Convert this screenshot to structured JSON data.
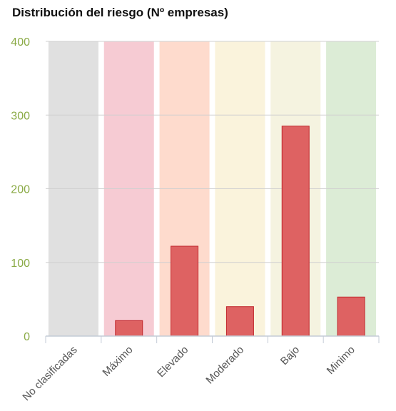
{
  "chart_data": {
    "type": "bar",
    "title": "Distribución del riesgo (Nº empresas)",
    "xlabel": "",
    "ylabel": "",
    "categories": [
      "No clasificadas",
      "Máximo",
      "Elevado",
      "Moderado",
      "Bajo",
      "Minimo"
    ],
    "values": [
      0,
      21,
      122,
      40,
      285,
      53
    ],
    "y_ticks": [
      0,
      100,
      200,
      300,
      400
    ],
    "ylim": [
      0,
      400
    ],
    "grid": true,
    "legend": "none",
    "bar_color": "#de6262",
    "bar_border_color": "#c1272d",
    "band_colors": [
      "#e0e0e0",
      "#f6cbd3",
      "#fedbcd",
      "#faf3dc",
      "#f5f3e0",
      "#dcecd6"
    ],
    "axis_label_color": "#8aaa45"
  }
}
